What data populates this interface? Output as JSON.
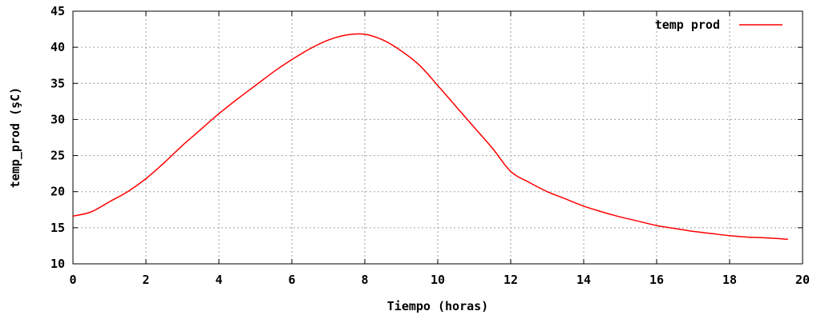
{
  "chart_data": {
    "type": "line",
    "xlabel": "Tiempo (horas)",
    "ylabel": "temp_prod (şC)",
    "xlim": [
      0,
      20
    ],
    "ylim": [
      10,
      45
    ],
    "xticks": [
      0,
      2,
      4,
      6,
      8,
      10,
      12,
      14,
      16,
      18,
      20
    ],
    "yticks": [
      10,
      15,
      20,
      25,
      30,
      35,
      40,
      45
    ],
    "grid": true,
    "legend_position": "top-right",
    "series": [
      {
        "name": "temp prod",
        "color": "#ff0000",
        "x": [
          0,
          0.5,
          1,
          1.5,
          2,
          2.5,
          3,
          3.5,
          4,
          4.5,
          5,
          5.5,
          6,
          6.5,
          7,
          7.5,
          8,
          8.5,
          9,
          9.5,
          10,
          10.5,
          11,
          11.5,
          12,
          12.5,
          13,
          13.5,
          14,
          14.5,
          15,
          15.5,
          16,
          16.5,
          17,
          17.5,
          18,
          18.5,
          19,
          19.6
        ],
        "y": [
          16.6,
          17.2,
          18.6,
          20.0,
          21.8,
          24.0,
          26.4,
          28.6,
          30.8,
          32.8,
          34.7,
          36.6,
          38.3,
          39.8,
          41.0,
          41.7,
          41.8,
          41.0,
          39.5,
          37.5,
          34.7,
          31.8,
          28.9,
          26.0,
          22.8,
          21.3,
          20.0,
          19.0,
          18.0,
          17.2,
          16.5,
          15.9,
          15.3,
          14.9,
          14.5,
          14.2,
          13.9,
          13.7,
          13.6,
          13.4
        ]
      }
    ]
  }
}
